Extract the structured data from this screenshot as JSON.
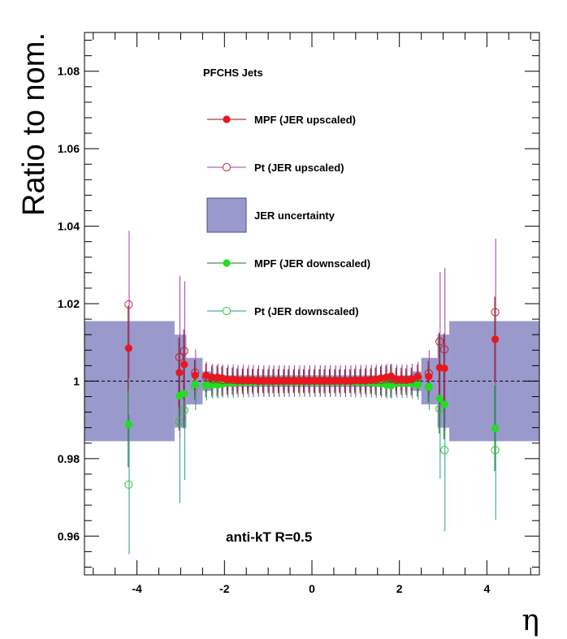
{
  "chart_data": {
    "type": "scatter",
    "title": "",
    "xlabel": "η",
    "ylabel": "Ratio to nom.",
    "xlim": [
      -5.2,
      5.2
    ],
    "ylim": [
      0.95,
      1.09
    ],
    "reference_line": 1.0,
    "header_text": "PFCHS Jets",
    "annotation": "anti-kT R=0.5",
    "x_ticks": [
      {
        "value": -4,
        "label": "-4"
      },
      {
        "value": -2,
        "label": "-2"
      },
      {
        "value": 0,
        "label": "0"
      },
      {
        "value": 2,
        "label": "2"
      },
      {
        "value": 4,
        "label": "4"
      }
    ],
    "y_ticks": [
      {
        "value": 0.96,
        "label": "0.96"
      },
      {
        "value": 0.98,
        "label": "0.98"
      },
      {
        "value": 1.0,
        "label": "1"
      },
      {
        "value": 1.02,
        "label": "1.02"
      },
      {
        "value": 1.04,
        "label": "1.04"
      },
      {
        "value": 1.06,
        "label": "1.06"
      },
      {
        "value": 1.08,
        "label": "1.08"
      }
    ],
    "band": {
      "name": "JER uncertainty",
      "color": "#9a99cc",
      "edge_color": "#4a4a8a",
      "bins": [
        {
          "x0": -5.2,
          "x1": -3.14,
          "lo": 0.9845,
          "hi": 1.0155
        },
        {
          "x0": -3.14,
          "x1": -2.87,
          "lo": 0.988,
          "hi": 1.012
        },
        {
          "x0": -2.87,
          "x1": -2.5,
          "lo": 0.994,
          "hi": 1.006
        },
        {
          "x0": -2.5,
          "x1": -2.3,
          "lo": 0.9975,
          "hi": 1.0025
        },
        {
          "x0": -2.3,
          "x1": 2.3,
          "lo": 0.9985,
          "hi": 1.0015
        },
        {
          "x0": 2.3,
          "x1": 2.5,
          "lo": 0.9975,
          "hi": 1.0025
        },
        {
          "x0": 2.5,
          "x1": 2.87,
          "lo": 0.994,
          "hi": 1.006
        },
        {
          "x0": 2.87,
          "x1": 3.14,
          "lo": 0.988,
          "hi": 1.012
        },
        {
          "x0": 3.14,
          "x1": 5.2,
          "lo": 0.9845,
          "hi": 1.0155
        }
      ]
    },
    "series": [
      {
        "name": "MPF (JER upscaled)",
        "color": "#e8171f",
        "line_color": "#8b1010",
        "marker": "filled",
        "x": [
          -4.19,
          -3.03,
          -2.92,
          -2.67,
          -2.42,
          -2.28,
          -2.16,
          -2.05,
          -1.93,
          -1.81,
          -1.7,
          -1.58,
          -1.46,
          -1.35,
          -1.23,
          -1.11,
          -0.99,
          -0.88,
          -0.76,
          -0.64,
          -0.53,
          -0.41,
          -0.29,
          -0.18,
          -0.06,
          0.06,
          0.18,
          0.29,
          0.41,
          0.53,
          0.64,
          0.76,
          0.88,
          0.99,
          1.11,
          1.23,
          1.35,
          1.46,
          1.58,
          1.7,
          1.81,
          1.93,
          2.05,
          2.16,
          2.28,
          2.42,
          2.67,
          2.92,
          3.03,
          4.19
        ],
        "y": [
          1.0085,
          1.0022,
          1.0043,
          1.0015,
          1.0015,
          1.001,
          1.001,
          1.0008,
          1.0005,
          1.0005,
          1.0003,
          1.0003,
          1.0003,
          1.0002,
          1.0002,
          1.0001,
          1.0001,
          1.0001,
          1.0001,
          1.0001,
          1.0001,
          1.0001,
          1.0001,
          1.0001,
          1.0001,
          1.0001,
          1.0001,
          1.0001,
          1.0001,
          1.0001,
          1.0001,
          1.0001,
          1.0001,
          1.0002,
          1.0002,
          1.0003,
          1.0003,
          1.0005,
          1.0008,
          1.001,
          1.0013,
          1.0005,
          1.0005,
          1.0003,
          1.0005,
          1.0013,
          1.0012,
          1.0035,
          1.0033,
          1.0108
        ],
        "err": [
          0.011,
          0.009,
          0.009,
          0.004,
          0.003,
          0.003,
          0.003,
          0.003,
          0.003,
          0.003,
          0.003,
          0.003,
          0.003,
          0.003,
          0.003,
          0.003,
          0.003,
          0.003,
          0.003,
          0.003,
          0.003,
          0.003,
          0.003,
          0.003,
          0.003,
          0.003,
          0.003,
          0.003,
          0.003,
          0.003,
          0.003,
          0.003,
          0.003,
          0.003,
          0.003,
          0.003,
          0.003,
          0.003,
          0.003,
          0.003,
          0.003,
          0.003,
          0.003,
          0.003,
          0.003,
          0.003,
          0.004,
          0.009,
          0.009,
          0.011
        ]
      },
      {
        "name": "Pt (JER upscaled)",
        "color": "#c02020",
        "line_color": "#a040a0",
        "marker": "open",
        "x": [
          -4.19,
          -3.03,
          -2.92,
          -2.67,
          -2.42,
          -2.28,
          -2.16,
          -2.05,
          -1.93,
          -1.81,
          -1.7,
          -1.58,
          -1.46,
          -1.35,
          -1.23,
          -1.11,
          -0.99,
          -0.88,
          -0.76,
          -0.64,
          -0.53,
          -0.41,
          -0.29,
          -0.18,
          -0.06,
          0.06,
          0.18,
          0.29,
          0.41,
          0.53,
          0.64,
          0.76,
          0.88,
          0.99,
          1.11,
          1.23,
          1.35,
          1.46,
          1.58,
          1.7,
          1.81,
          1.93,
          2.05,
          2.16,
          2.28,
          2.42,
          2.67,
          2.92,
          3.03,
          4.19
        ],
        "y": [
          1.0198,
          1.0062,
          1.0078,
          1.0022,
          1.001,
          1.0005,
          1.0005,
          1.0003,
          1.0003,
          1.0003,
          1.0002,
          1.0002,
          1.0002,
          1.0002,
          1.0001,
          1.0001,
          1.0001,
          1.0001,
          1.0001,
          1.0001,
          1.0001,
          1.0001,
          1.0001,
          1.0001,
          1.0001,
          1.0001,
          1.0001,
          1.0001,
          1.0001,
          1.0001,
          1.0001,
          1.0001,
          1.0001,
          1.0002,
          1.0002,
          1.0002,
          1.0003,
          1.0003,
          1.0003,
          1.0005,
          1.0005,
          1.0003,
          1.0003,
          1.0003,
          1.0005,
          1.001,
          1.002,
          1.0102,
          1.0082,
          1.0178
        ],
        "err": [
          0.019,
          0.021,
          0.018,
          0.006,
          0.004,
          0.004,
          0.004,
          0.004,
          0.004,
          0.004,
          0.004,
          0.004,
          0.004,
          0.004,
          0.004,
          0.004,
          0.004,
          0.004,
          0.004,
          0.004,
          0.004,
          0.004,
          0.004,
          0.004,
          0.004,
          0.004,
          0.004,
          0.004,
          0.004,
          0.004,
          0.004,
          0.004,
          0.004,
          0.004,
          0.004,
          0.004,
          0.004,
          0.004,
          0.004,
          0.004,
          0.004,
          0.004,
          0.004,
          0.004,
          0.004,
          0.004,
          0.006,
          0.018,
          0.021,
          0.019
        ]
      },
      {
        "name": "MPF (JER downscaled)",
        "color": "#22dd22",
        "line_color": "#1a7a1a",
        "marker": "filled",
        "x": [
          -4.19,
          -3.03,
          -2.92,
          -2.67,
          -2.42,
          -2.28,
          -2.16,
          -2.05,
          -1.93,
          -1.81,
          -1.7,
          -1.58,
          -1.46,
          -1.35,
          -1.23,
          -1.11,
          -0.99,
          -0.88,
          -0.76,
          -0.64,
          -0.53,
          -0.41,
          -0.29,
          -0.18,
          -0.06,
          0.06,
          0.18,
          0.29,
          0.41,
          0.53,
          0.64,
          0.76,
          0.88,
          0.99,
          1.11,
          1.23,
          1.35,
          1.46,
          1.58,
          1.7,
          1.81,
          1.93,
          2.05,
          2.16,
          2.28,
          2.42,
          2.67,
          2.92,
          3.03,
          4.19
        ],
        "y": [
          0.9888,
          0.9962,
          0.9968,
          0.9992,
          0.9988,
          0.999,
          0.999,
          0.9992,
          0.9995,
          0.9995,
          0.9997,
          0.9997,
          0.9997,
          0.9998,
          0.9998,
          0.9999,
          0.9999,
          0.9999,
          0.9999,
          0.9999,
          0.9999,
          0.9999,
          0.9999,
          0.9999,
          0.9999,
          0.9999,
          0.9999,
          0.9999,
          0.9999,
          0.9999,
          0.9999,
          0.9999,
          0.9999,
          0.9998,
          0.9998,
          0.9997,
          0.9997,
          0.9995,
          0.9993,
          0.999,
          0.9988,
          0.9995,
          0.9995,
          0.9995,
          0.9993,
          0.999,
          0.9985,
          0.9955,
          0.994,
          0.9878
        ],
        "err": [
          0.011,
          0.009,
          0.009,
          0.004,
          0.003,
          0.003,
          0.003,
          0.003,
          0.003,
          0.003,
          0.003,
          0.003,
          0.003,
          0.003,
          0.003,
          0.003,
          0.003,
          0.003,
          0.003,
          0.003,
          0.003,
          0.003,
          0.003,
          0.003,
          0.003,
          0.003,
          0.003,
          0.003,
          0.003,
          0.003,
          0.003,
          0.003,
          0.003,
          0.003,
          0.003,
          0.003,
          0.003,
          0.003,
          0.003,
          0.003,
          0.003,
          0.003,
          0.003,
          0.003,
          0.003,
          0.003,
          0.004,
          0.009,
          0.009,
          0.011
        ]
      },
      {
        "name": "Pt (JER downscaled)",
        "color": "#22cc33",
        "line_color": "#2a9a8a",
        "marker": "open",
        "x": [
          -4.19,
          -3.03,
          -2.92,
          -2.67,
          -2.42,
          -2.28,
          -2.16,
          -2.05,
          -1.93,
          -1.81,
          -1.7,
          -1.58,
          -1.46,
          -1.35,
          -1.23,
          -1.11,
          -0.99,
          -0.88,
          -0.76,
          -0.64,
          -0.53,
          -0.41,
          -0.29,
          -0.18,
          -0.06,
          0.06,
          0.18,
          0.29,
          0.41,
          0.53,
          0.64,
          0.76,
          0.88,
          0.99,
          1.11,
          1.23,
          1.35,
          1.46,
          1.58,
          1.7,
          1.81,
          1.93,
          2.05,
          2.16,
          2.28,
          2.42,
          2.67,
          2.92,
          3.03,
          4.19
        ],
        "y": [
          0.9733,
          0.9895,
          0.9925,
          0.9985,
          0.999,
          0.9995,
          0.9995,
          0.9997,
          0.9997,
          0.9997,
          0.9998,
          0.9998,
          0.9998,
          0.9998,
          0.9999,
          0.9999,
          0.9999,
          0.9999,
          0.9999,
          0.9999,
          0.9999,
          0.9999,
          0.9999,
          0.9999,
          0.9999,
          0.9999,
          0.9999,
          0.9999,
          0.9999,
          0.9999,
          0.9999,
          0.9999,
          0.9999,
          0.9998,
          0.9998,
          0.9998,
          0.9997,
          0.9997,
          0.9997,
          0.9995,
          0.9995,
          0.9997,
          0.9997,
          0.9997,
          0.9995,
          0.9992,
          0.9985,
          0.9928,
          0.9822,
          0.9822
        ],
        "err": [
          0.018,
          0.021,
          0.018,
          0.006,
          0.004,
          0.004,
          0.004,
          0.004,
          0.004,
          0.004,
          0.004,
          0.004,
          0.004,
          0.004,
          0.004,
          0.004,
          0.004,
          0.004,
          0.004,
          0.004,
          0.004,
          0.004,
          0.004,
          0.004,
          0.004,
          0.004,
          0.004,
          0.004,
          0.004,
          0.004,
          0.004,
          0.004,
          0.004,
          0.004,
          0.004,
          0.004,
          0.004,
          0.004,
          0.004,
          0.004,
          0.004,
          0.004,
          0.004,
          0.004,
          0.004,
          0.004,
          0.006,
          0.018,
          0.021,
          0.018
        ]
      }
    ],
    "legend": [
      {
        "label": "MPF (JER upscaled)",
        "kind": "filled",
        "color": "#e8171f",
        "line_color": "#8b1010"
      },
      {
        "label": "Pt (JER upscaled)",
        "kind": "open",
        "color": "#c02020",
        "line_color": "#a040a0"
      },
      {
        "label": "JER uncertainty",
        "kind": "box",
        "color": "#9a99cc",
        "line_color": "#4a4a8a"
      },
      {
        "label": "MPF (JER downscaled)",
        "kind": "filled",
        "color": "#22dd22",
        "line_color": "#1a7a1a"
      },
      {
        "label": "Pt (JER downscaled)",
        "kind": "open",
        "color": "#22cc33",
        "line_color": "#2a9a8a"
      }
    ],
    "legend_position": "top-left",
    "grid": false
  }
}
